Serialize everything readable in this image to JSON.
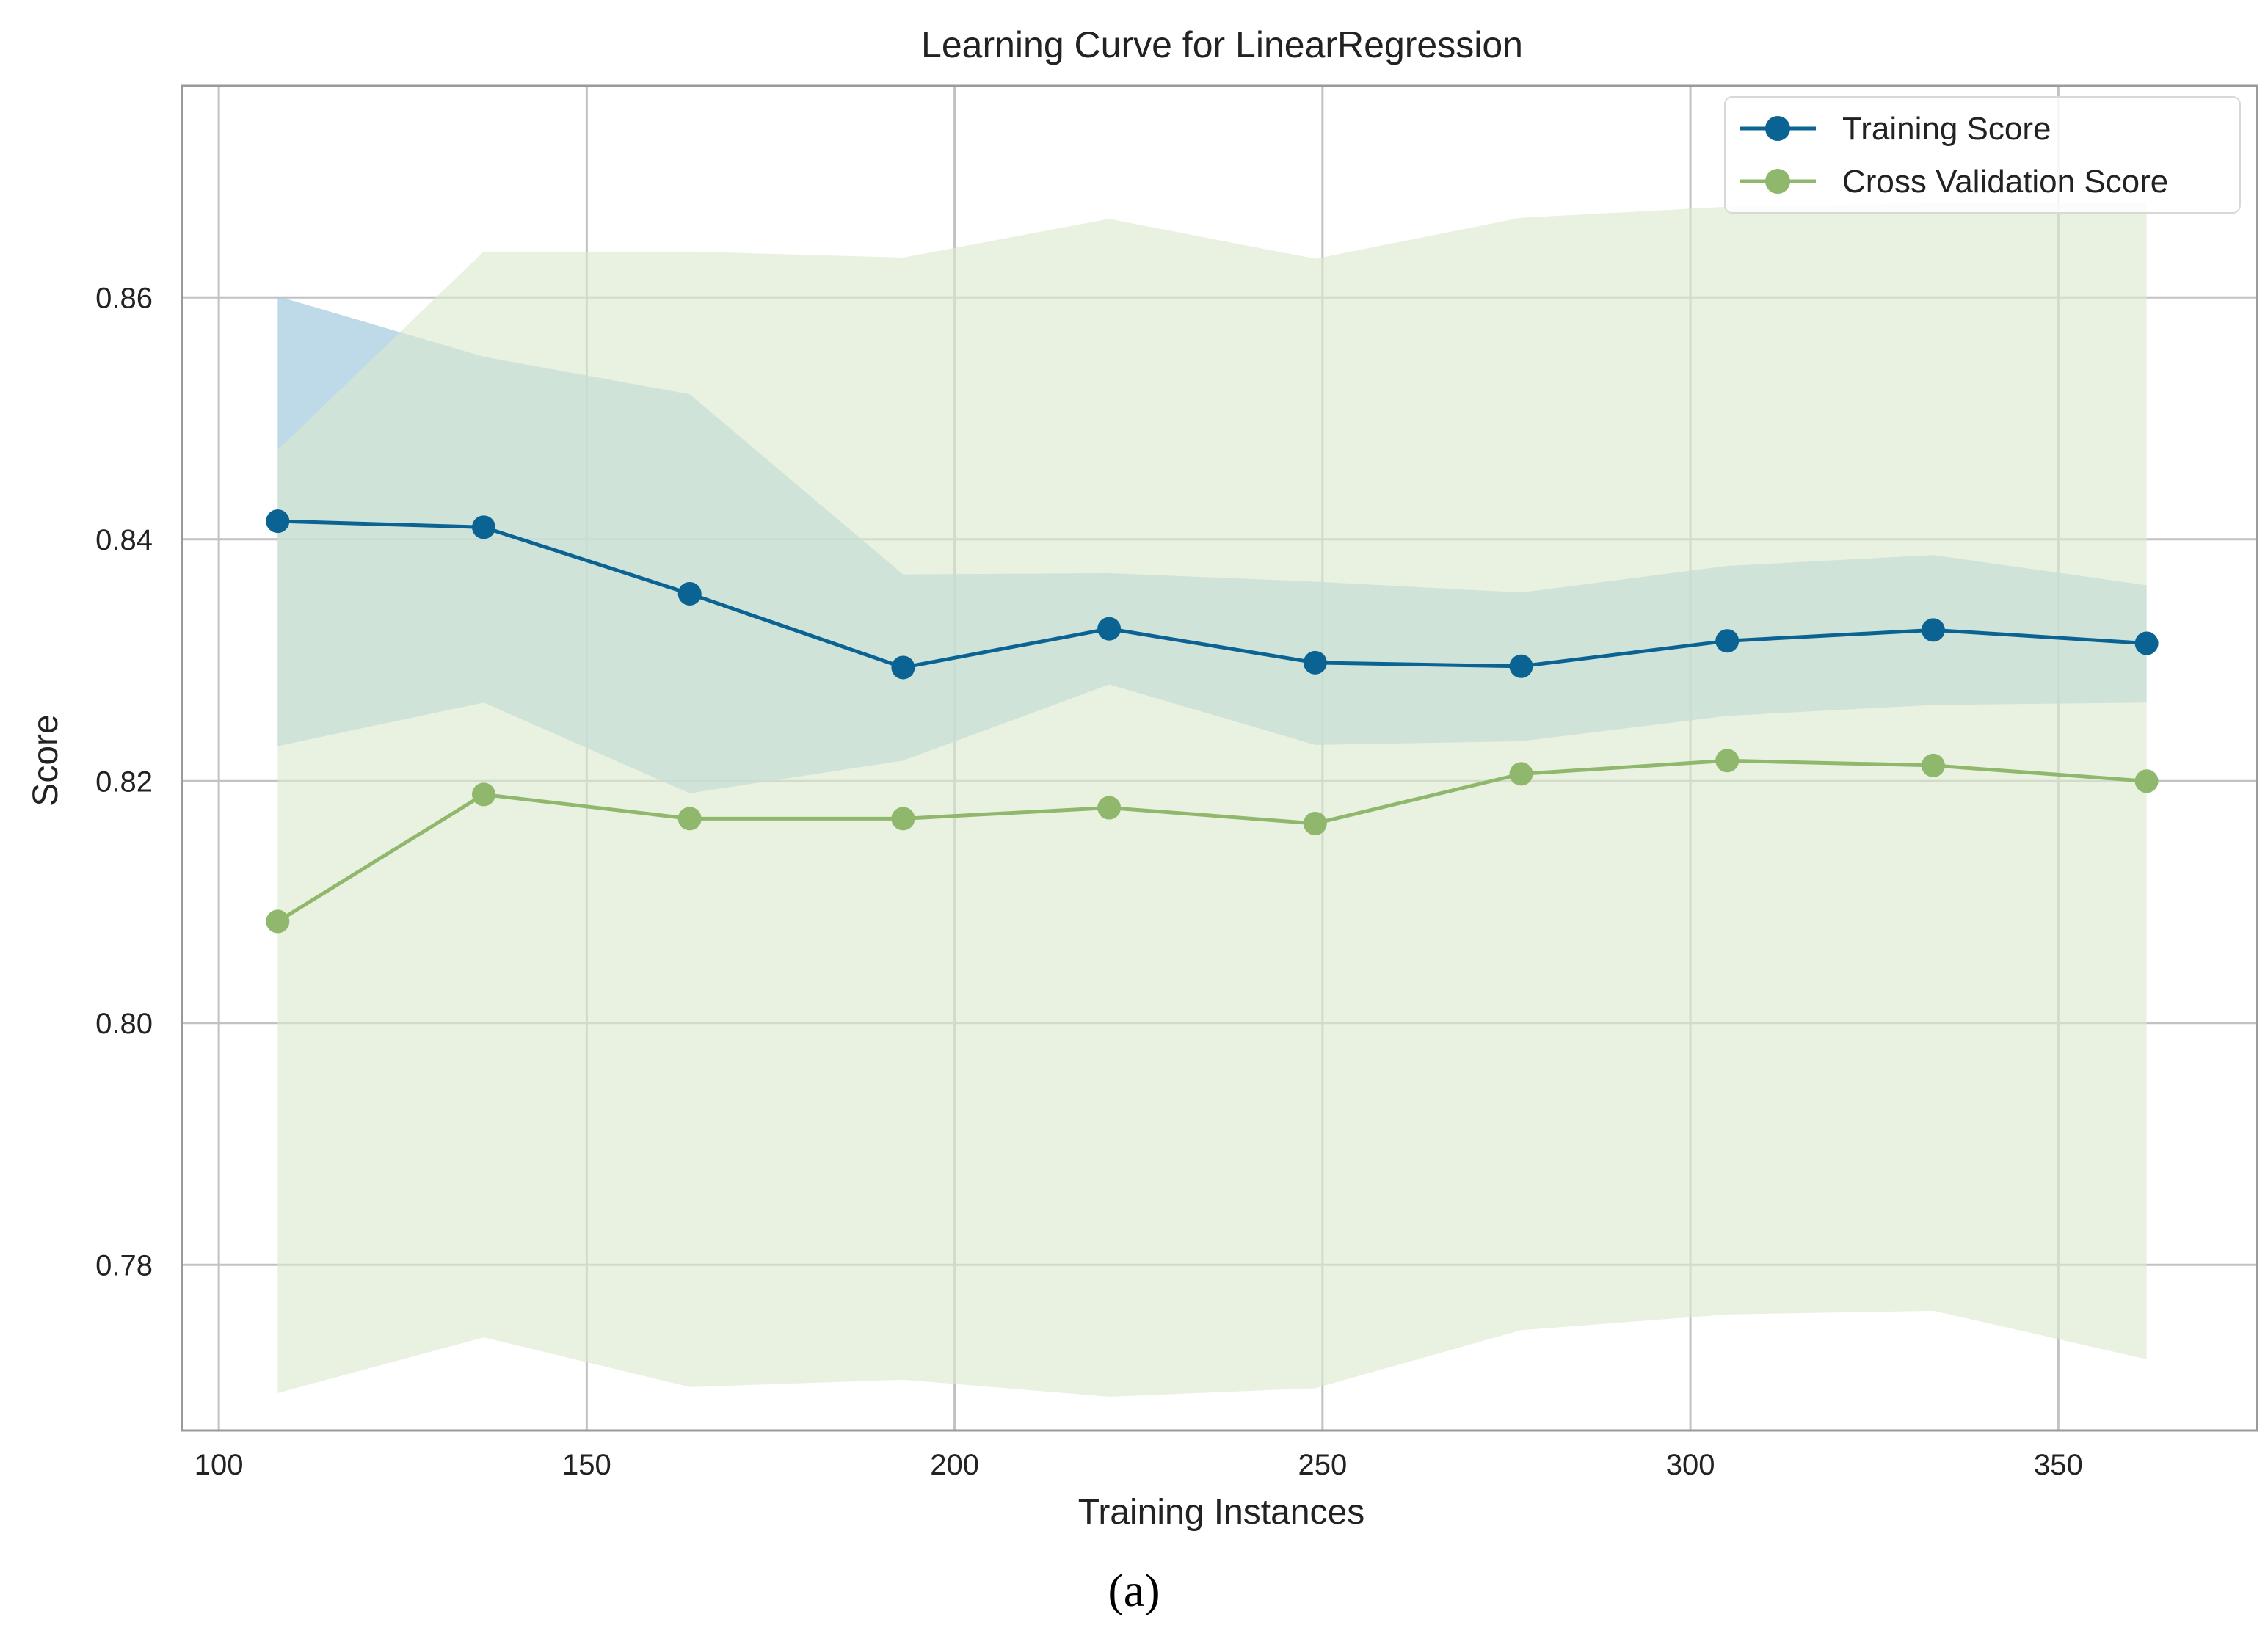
{
  "chart_data": {
    "type": "line",
    "title": "Learning Curve for LinearRegression",
    "xlabel": "Training Instances",
    "ylabel": "Score",
    "caption": "(a)",
    "xlim": [
      95,
      377
    ],
    "ylim": [
      0.7663,
      0.8775
    ],
    "grid": true,
    "legend_position": "top-right",
    "x_ticks": [
      100,
      150,
      200,
      250,
      300,
      350
    ],
    "x_tick_labels": [
      "100",
      "150",
      "200",
      "250",
      "300",
      "350"
    ],
    "y_ticks": [
      0.78,
      0.8,
      0.82,
      0.84,
      0.86
    ],
    "y_tick_labels": [
      "0.78",
      "0.80",
      "0.82",
      "0.84",
      "0.86"
    ],
    "x": [
      108,
      136,
      164,
      193,
      221,
      249,
      277,
      305,
      333,
      362
    ],
    "series": [
      {
        "name": "Training Score",
        "color": "#0b6393",
        "band_color": "#a8cce0",
        "values": [
          0.8415,
          0.841,
          0.8355,
          0.8294,
          0.8326,
          0.8298,
          0.8295,
          0.8316,
          0.8325,
          0.8314
        ],
        "upper": [
          0.8601,
          0.8551,
          0.852,
          0.8371,
          0.8372,
          0.8365,
          0.8356,
          0.8378,
          0.8387,
          0.8362
        ],
        "lower": [
          0.8229,
          0.8265,
          0.819,
          0.8217,
          0.828,
          0.823,
          0.8233,
          0.8254,
          0.8263,
          0.8265
        ]
      },
      {
        "name": "Cross Validation Score",
        "color": "#90b86c",
        "band_color": "#dbe9cf",
        "values": [
          0.8084,
          0.8189,
          0.8169,
          0.8169,
          0.8178,
          0.8165,
          0.8206,
          0.8217,
          0.8213,
          0.82
        ],
        "upper": [
          0.8474,
          0.8638,
          0.8638,
          0.8633,
          0.8665,
          0.8632,
          0.8666,
          0.8675,
          0.8678,
          0.8678
        ],
        "lower": [
          0.7694,
          0.774,
          0.7699,
          0.7705,
          0.7691,
          0.7698,
          0.7746,
          0.7759,
          0.7762,
          0.7722
        ]
      }
    ]
  }
}
